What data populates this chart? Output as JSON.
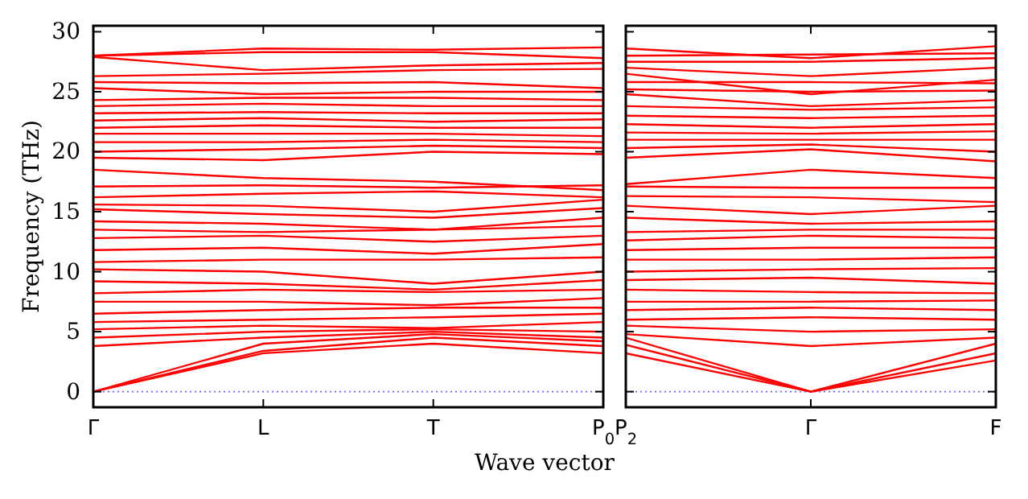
{
  "chart_data": [
    {
      "type": "line",
      "ylabel": "Frequency (THz)",
      "xlabel": "Wave vector",
      "categories": [
        "Γ",
        "L",
        "T",
        "P$_{0}$"
      ],
      "ylim": [
        -1.3,
        30.5
      ],
      "yticks": [
        0,
        5,
        10,
        15,
        20,
        25,
        30
      ],
      "ref_lines": [
        {
          "axis": "y",
          "value": 0,
          "color": "#6666ff",
          "line_style": "dotted"
        }
      ],
      "series": [
        {
          "color": "#ff0000",
          "values": [
            0,
            3.2,
            4.0,
            3.2
          ]
        },
        {
          "color": "#ff0000",
          "values": [
            0,
            3.4,
            4.5,
            3.8
          ]
        },
        {
          "color": "#ff0000",
          "values": [
            0,
            4.0,
            4.8,
            4.2
          ]
        },
        {
          "color": "#ff0000",
          "values": [
            3.8,
            4.5,
            5.0,
            4.5
          ]
        },
        {
          "color": "#ff0000",
          "values": [
            4.5,
            5.0,
            5.2,
            5.0
          ]
        },
        {
          "color": "#ff0000",
          "values": [
            5.2,
            5.5,
            5.3,
            5.8
          ]
        },
        {
          "color": "#ff0000",
          "values": [
            5.8,
            6.0,
            6.2,
            6.5
          ]
        },
        {
          "color": "#ff0000",
          "values": [
            6.5,
            6.8,
            7.0,
            7.0
          ]
        },
        {
          "color": "#ff0000",
          "values": [
            7.5,
            7.5,
            7.2,
            7.8
          ]
        },
        {
          "color": "#ff0000",
          "values": [
            8.2,
            8.5,
            8.3,
            8.5
          ]
        },
        {
          "color": "#ff0000",
          "values": [
            9.2,
            9.0,
            8.5,
            9.3
          ]
        },
        {
          "color": "#ff0000",
          "values": [
            10.2,
            10.0,
            9.0,
            10.0
          ]
        },
        {
          "color": "#ff0000",
          "values": [
            10.8,
            11.0,
            11.0,
            11.2
          ]
        },
        {
          "color": "#ff0000",
          "values": [
            11.8,
            12.0,
            11.5,
            12.3
          ]
        },
        {
          "color": "#ff0000",
          "values": [
            12.8,
            13.0,
            12.5,
            13.0
          ]
        },
        {
          "color": "#ff0000",
          "values": [
            13.5,
            13.3,
            13.5,
            13.8
          ]
        },
        {
          "color": "#ff0000",
          "values": [
            14.2,
            14.0,
            13.5,
            14.5
          ]
        },
        {
          "color": "#ff0000",
          "values": [
            15.2,
            14.8,
            14.5,
            15.3
          ]
        },
        {
          "color": "#ff0000",
          "values": [
            15.6,
            15.5,
            15.0,
            16.0
          ]
        },
        {
          "color": "#ff0000",
          "values": [
            16.2,
            16.5,
            16.7,
            16.2
          ]
        },
        {
          "color": "#ff0000",
          "values": [
            17.1,
            17.2,
            17.0,
            17.2
          ]
        },
        {
          "color": "#ff0000",
          "values": [
            18.5,
            17.8,
            17.5,
            16.8
          ]
        },
        {
          "color": "#ff0000",
          "values": [
            19.5,
            19.3,
            20.0,
            19.8
          ]
        },
        {
          "color": "#ff0000",
          "values": [
            20.0,
            20.2,
            20.5,
            20.3
          ]
        },
        {
          "color": "#ff0000",
          "values": [
            20.8,
            20.8,
            21.0,
            20.8
          ]
        },
        {
          "color": "#ff0000",
          "values": [
            21.5,
            21.5,
            21.5,
            21.3
          ]
        },
        {
          "color": "#ff0000",
          "values": [
            22.0,
            22.2,
            22.0,
            22.0
          ]
        },
        {
          "color": "#ff0000",
          "values": [
            22.6,
            22.8,
            22.5,
            22.7
          ]
        },
        {
          "color": "#ff0000",
          "values": [
            23.2,
            23.3,
            23.2,
            23.2
          ]
        },
        {
          "color": "#ff0000",
          "values": [
            23.8,
            24.0,
            23.8,
            23.8
          ]
        },
        {
          "color": "#ff0000",
          "values": [
            24.3,
            24.5,
            24.5,
            24.3
          ]
        },
        {
          "color": "#ff0000",
          "values": [
            25.3,
            24.8,
            25.0,
            25.0
          ]
        },
        {
          "color": "#ff0000",
          "values": [
            25.8,
            25.7,
            25.8,
            25.3
          ]
        },
        {
          "color": "#ff0000",
          "values": [
            26.3,
            26.5,
            26.8,
            26.9
          ]
        },
        {
          "color": "#ff0000",
          "values": [
            27.9,
            26.8,
            27.2,
            27.4
          ]
        },
        {
          "color": "#ff0000",
          "values": [
            28.0,
            28.3,
            28.3,
            27.8
          ]
        },
        {
          "color": "#ff0000",
          "values": [
            28.0,
            28.6,
            28.5,
            28.7
          ]
        }
      ]
    },
    {
      "type": "line",
      "tick_labels": "x",
      "categories": [
        "P$_{2}$",
        "Γ",
        "F"
      ],
      "ylim": [
        -1.3,
        30.5
      ],
      "yticks": [
        0,
        5,
        10,
        15,
        20,
        25,
        30
      ],
      "ref_lines": [
        {
          "axis": "y",
          "value": 0,
          "color": "#6666ff",
          "line_style": "dotted"
        }
      ],
      "series": [
        {
          "color": "#ff0000",
          "values": [
            3.2,
            0,
            2.6
          ]
        },
        {
          "color": "#ff0000",
          "values": [
            3.9,
            0,
            3.2
          ]
        },
        {
          "color": "#ff0000",
          "values": [
            4.5,
            0,
            4.0
          ]
        },
        {
          "color": "#ff0000",
          "values": [
            4.8,
            3.8,
            4.5
          ]
        },
        {
          "color": "#ff0000",
          "values": [
            5.5,
            5.0,
            5.2
          ]
        },
        {
          "color": "#ff0000",
          "values": [
            6.0,
            6.2,
            6.0
          ]
        },
        {
          "color": "#ff0000",
          "values": [
            6.8,
            7.0,
            6.8
          ]
        },
        {
          "color": "#ff0000",
          "values": [
            7.5,
            7.5,
            7.6
          ]
        },
        {
          "color": "#ff0000",
          "values": [
            8.5,
            8.3,
            8.2
          ]
        },
        {
          "color": "#ff0000",
          "values": [
            9.3,
            9.5,
            9.0
          ]
        },
        {
          "color": "#ff0000",
          "values": [
            10.0,
            10.2,
            10.3
          ]
        },
        {
          "color": "#ff0000",
          "values": [
            11.0,
            11.0,
            11.2
          ]
        },
        {
          "color": "#ff0000",
          "values": [
            11.8,
            12.0,
            12.0
          ]
        },
        {
          "color": "#ff0000",
          "values": [
            12.6,
            13.0,
            12.8
          ]
        },
        {
          "color": "#ff0000",
          "values": [
            13.3,
            13.5,
            13.5
          ]
        },
        {
          "color": "#ff0000",
          "values": [
            14.5,
            14.0,
            14.2
          ]
        },
        {
          "color": "#ff0000",
          "values": [
            15.5,
            14.8,
            15.5
          ]
        },
        {
          "color": "#ff0000",
          "values": [
            16.3,
            16.2,
            15.8
          ]
        },
        {
          "color": "#ff0000",
          "values": [
            17.1,
            17.0,
            17.0
          ]
        },
        {
          "color": "#ff0000",
          "values": [
            17.3,
            18.5,
            17.8
          ]
        },
        {
          "color": "#ff0000",
          "values": [
            19.5,
            20.2,
            19.2
          ]
        },
        {
          "color": "#ff0000",
          "values": [
            20.3,
            20.6,
            20.0
          ]
        },
        {
          "color": "#ff0000",
          "values": [
            21.0,
            21.0,
            21.0
          ]
        },
        {
          "color": "#ff0000",
          "values": [
            21.6,
            21.5,
            21.7
          ]
        },
        {
          "color": "#ff0000",
          "values": [
            22.3,
            22.0,
            22.3
          ]
        },
        {
          "color": "#ff0000",
          "values": [
            23.0,
            22.8,
            23.0
          ]
        },
        {
          "color": "#ff0000",
          "values": [
            23.8,
            23.5,
            23.7
          ]
        },
        {
          "color": "#ff0000",
          "values": [
            24.8,
            23.8,
            24.3
          ]
        },
        {
          "color": "#ff0000",
          "values": [
            25.2,
            25.0,
            25.1
          ]
        },
        {
          "color": "#ff0000",
          "values": [
            25.8,
            25.8,
            25.7
          ]
        },
        {
          "color": "#ff0000",
          "values": [
            26.5,
            24.8,
            26.0
          ]
        },
        {
          "color": "#ff0000",
          "values": [
            27.0,
            26.3,
            27.0
          ]
        },
        {
          "color": "#ff0000",
          "values": [
            27.5,
            27.5,
            27.8
          ]
        },
        {
          "color": "#ff0000",
          "values": [
            28.0,
            28.1,
            28.2
          ]
        },
        {
          "color": "#ff0000",
          "values": [
            28.6,
            27.8,
            28.8
          ]
        }
      ]
    }
  ]
}
